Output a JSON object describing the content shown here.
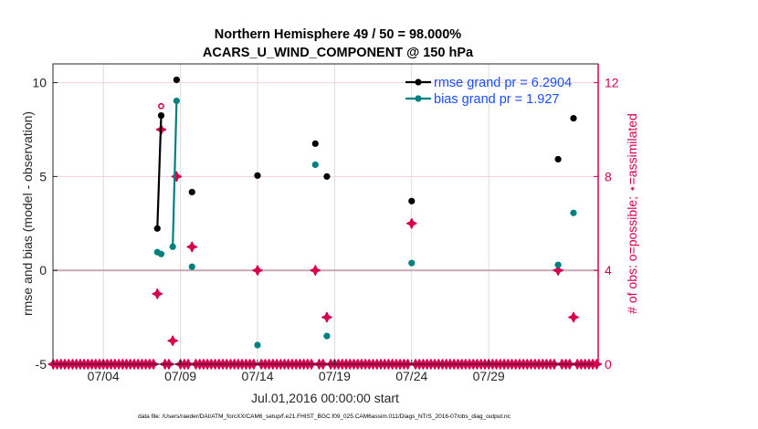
{
  "chart_data": {
    "type": "line",
    "title": [
      "Northern Hemisphere 49 / 50 = 98.000%",
      "ACARS_U_WIND_COMPONENT @ 150 hPa"
    ],
    "xlabel": "Jul.01,2016 00:00:00 start",
    "ylabel": "rmse and bias (model - observation)",
    "ylabel_right": "# of obs: o=possible; ⋆=assimilated",
    "footer": "data file: /Users/raeder/DAI/ATM_forcXX/CAM6_setup/f.e21.FHIST_BGC.f09_025.CAM6assim.011/Diags_NTrS_2016-07/obs_diag_output.nc",
    "x_unit": "days since Jul.01,2016 00:00:00",
    "xlim": [
      -0.27,
      35.1
    ],
    "ylim": [
      -5,
      11
    ],
    "ylim_right": [
      0,
      12.8
    ],
    "x_ticks": [
      {
        "v": 3,
        "label": "07/04"
      },
      {
        "v": 8,
        "label": "07/09"
      },
      {
        "v": 13,
        "label": "07/14"
      },
      {
        "v": 18,
        "label": "07/19"
      },
      {
        "v": 23,
        "label": "07/24"
      },
      {
        "v": 28,
        "label": "07/29"
      }
    ],
    "y_ticks": [
      {
        "v": -5,
        "label": "-5"
      },
      {
        "v": 0,
        "label": "0"
      },
      {
        "v": 5,
        "label": "5"
      },
      {
        "v": 10,
        "label": "10"
      }
    ],
    "y_ticks_right": [
      {
        "v": 0,
        "label": "0"
      },
      {
        "v": 4,
        "label": "4"
      },
      {
        "v": 8,
        "label": "8"
      },
      {
        "v": 12,
        "label": "12"
      }
    ],
    "grid": true,
    "legend_position": "top-right",
    "series": [
      {
        "name": "rmse grand pr = 6.2904",
        "color": "#000000",
        "points": [
          [
            6.5,
            2.23
          ],
          [
            6.75,
            8.25
          ],
          [
            7.5,
            null
          ],
          [
            7.75,
            10.15
          ],
          [
            8.75,
            4.17
          ],
          [
            13,
            5.05
          ],
          [
            16.75,
            6.75
          ],
          [
            17.5,
            5.0
          ],
          [
            23,
            3.69
          ],
          [
            32.5,
            5.92
          ],
          [
            33.5,
            8.1
          ]
        ]
      },
      {
        "name": "bias grand pr = 1.927",
        "color": "#00807f",
        "points": [
          [
            6.5,
            0.97
          ],
          [
            6.75,
            0.87
          ],
          [
            7.5,
            1.26
          ],
          [
            7.75,
            9.03
          ],
          [
            8.75,
            0.19
          ],
          [
            13,
            -3.98
          ],
          [
            16.75,
            5.63
          ],
          [
            17.5,
            -3.5
          ],
          [
            23,
            0.39
          ],
          [
            32.5,
            0.29
          ],
          [
            33.5,
            3.06
          ]
        ]
      }
    ],
    "obs_possible": {
      "color": "#d6004f",
      "points": [
        [
          6.75,
          11
        ]
      ]
    },
    "obs_assimilated": {
      "color": "#d6004f",
      "points": [
        [
          6.5,
          3
        ],
        [
          6.75,
          10
        ],
        [
          7.5,
          1
        ],
        [
          7.75,
          8
        ],
        [
          8.75,
          5
        ],
        [
          13,
          4
        ],
        [
          16.75,
          4
        ],
        [
          17.5,
          2
        ],
        [
          23,
          6
        ],
        [
          32.5,
          4
        ],
        [
          33.5,
          2
        ]
      ],
      "zero_bins": {
        "start": -0.25,
        "end": 35.0,
        "step": 0.25
      }
    }
  }
}
